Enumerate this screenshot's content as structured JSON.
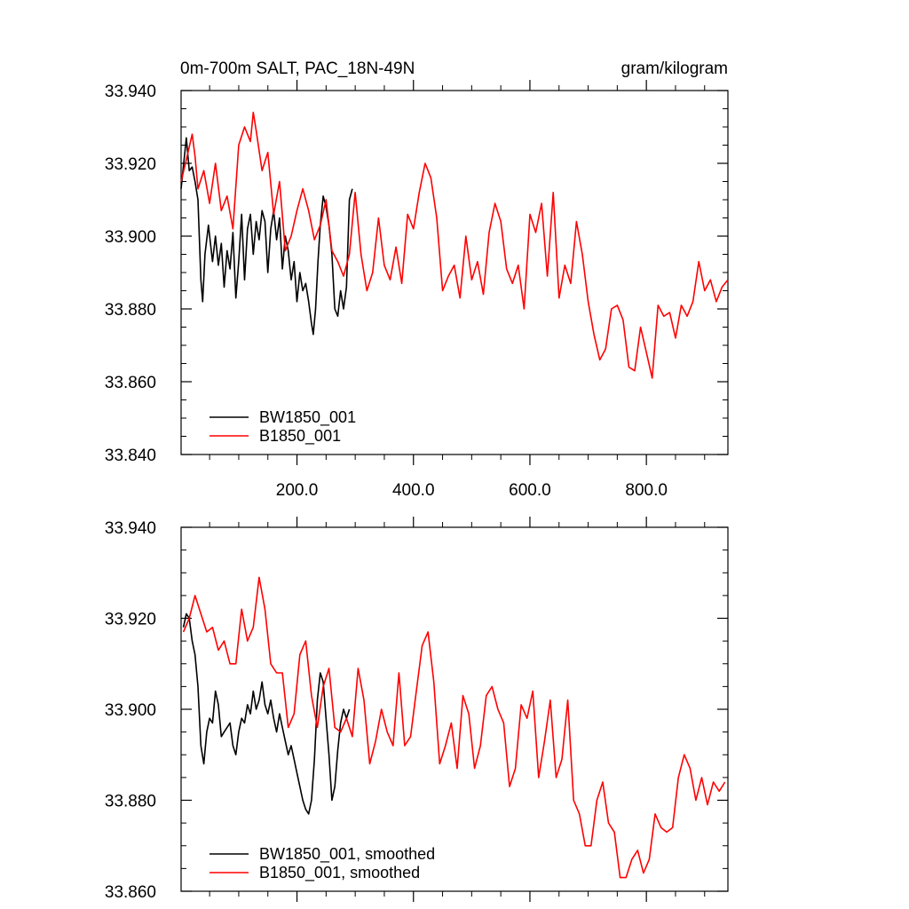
{
  "figure": {
    "title_left": "0m-700m SALT, PAC_18N-49N",
    "title_right": "gram/kilogram",
    "colors": {
      "bw": "#000000",
      "b": "#ff0000"
    }
  },
  "chart_data": [
    {
      "type": "line",
      "title": "0m-700m SALT, PAC_18N-49N",
      "units": "gram/kilogram",
      "xlim": [
        1,
        940
      ],
      "ylim": [
        33.84,
        33.94
      ],
      "xticks": [
        200,
        400,
        600,
        800
      ],
      "xtick_labels": [
        "200.0",
        "400.0",
        "600.0",
        "800.0"
      ],
      "yticks": [
        33.84,
        33.86,
        33.88,
        33.9,
        33.92,
        33.94
      ],
      "ytick_labels": [
        "33.840",
        "33.860",
        "33.880",
        "33.900",
        "33.920",
        "33.940"
      ],
      "legend": "bottom-left",
      "grid": false,
      "series": [
        {
          "name": "BW1850_001",
          "color": "#000000",
          "x": [
            1,
            10,
            15,
            20,
            25,
            30,
            35,
            38,
            42,
            48,
            55,
            60,
            65,
            70,
            75,
            80,
            85,
            90,
            95,
            100,
            105,
            110,
            115,
            120,
            125,
            130,
            135,
            140,
            145,
            150,
            155,
            160,
            165,
            170,
            175,
            180,
            185,
            190,
            195,
            200,
            205,
            210,
            215,
            220,
            225,
            228,
            232,
            236,
            240,
            245,
            250,
            255,
            260,
            265,
            270,
            275,
            280,
            285,
            290,
            295
          ],
          "y": [
            33.913,
            33.927,
            33.918,
            33.919,
            33.915,
            33.91,
            33.888,
            33.882,
            33.895,
            33.903,
            33.893,
            33.9,
            33.892,
            33.898,
            33.886,
            33.896,
            33.891,
            33.901,
            33.883,
            33.893,
            33.906,
            33.888,
            33.902,
            33.906,
            33.895,
            33.904,
            33.899,
            33.907,
            33.904,
            33.89,
            33.902,
            33.907,
            33.899,
            33.905,
            33.891,
            33.9,
            33.896,
            33.888,
            33.893,
            33.882,
            33.89,
            33.885,
            33.887,
            33.882,
            33.876,
            33.873,
            33.88,
            33.893,
            33.903,
            33.911,
            33.908,
            33.903,
            33.895,
            33.88,
            33.878,
            33.885,
            33.88,
            33.886,
            33.91,
            33.913
          ]
        },
        {
          "name": "B1850_001",
          "color": "#ff0000",
          "x": [
            1,
            10,
            20,
            25,
            30,
            40,
            50,
            60,
            70,
            80,
            90,
            100,
            110,
            120,
            125,
            130,
            140,
            150,
            160,
            170,
            180,
            190,
            200,
            210,
            220,
            230,
            240,
            250,
            260,
            270,
            280,
            290,
            300,
            310,
            320,
            330,
            340,
            350,
            360,
            370,
            380,
            390,
            400,
            410,
            420,
            425,
            430,
            440,
            450,
            460,
            470,
            480,
            490,
            500,
            510,
            520,
            530,
            540,
            550,
            560,
            570,
            580,
            590,
            600,
            610,
            620,
            630,
            640,
            650,
            660,
            670,
            680,
            690,
            700,
            710,
            720,
            730,
            740,
            750,
            760,
            770,
            780,
            790,
            800,
            810,
            820,
            830,
            840,
            850,
            860,
            870,
            880,
            890,
            900,
            910,
            920,
            930,
            940
          ],
          "y": [
            33.915,
            33.921,
            33.928,
            33.922,
            33.913,
            33.918,
            33.909,
            33.92,
            33.907,
            33.911,
            33.902,
            33.925,
            33.93,
            33.926,
            33.934,
            33.929,
            33.918,
            33.923,
            33.906,
            33.915,
            33.896,
            33.9,
            33.907,
            33.913,
            33.907,
            33.899,
            33.903,
            33.91,
            33.896,
            33.893,
            33.889,
            33.895,
            33.912,
            33.895,
            33.885,
            33.89,
            33.905,
            33.892,
            33.888,
            33.897,
            33.887,
            33.906,
            33.902,
            33.912,
            33.92,
            33.918,
            33.916,
            33.905,
            33.885,
            33.889,
            33.892,
            33.883,
            33.9,
            33.888,
            33.893,
            33.884,
            33.901,
            33.909,
            33.904,
            33.891,
            33.887,
            33.892,
            33.88,
            33.906,
            33.901,
            33.909,
            33.889,
            33.912,
            33.883,
            33.892,
            33.887,
            33.904,
            33.895,
            33.882,
            33.873,
            33.866,
            33.869,
            33.88,
            33.881,
            33.877,
            33.864,
            33.863,
            33.875,
            33.868,
            33.861,
            33.881,
            33.878,
            33.879,
            33.872,
            33.881,
            33.878,
            33.882,
            33.893,
            33.885,
            33.888,
            33.882,
            33.886,
            33.888
          ]
        }
      ],
      "legend_entries": [
        "BW1850_001",
        "B1850_001"
      ]
    },
    {
      "type": "line",
      "xlim": [
        1,
        940
      ],
      "ylim": [
        33.86,
        33.94
      ],
      "xticks": [
        200,
        400,
        600,
        800
      ],
      "yticks": [
        33.86,
        33.88,
        33.9,
        33.92,
        33.94
      ],
      "ytick_labels": [
        "33.860",
        "33.880",
        "33.900",
        "33.920",
        "33.940"
      ],
      "legend": "bottom-left",
      "grid": false,
      "series": [
        {
          "name": "BW1850_001, smoothed",
          "color": "#000000",
          "x": [
            5,
            10,
            15,
            20,
            25,
            30,
            35,
            40,
            45,
            50,
            55,
            60,
            65,
            70,
            75,
            80,
            85,
            90,
            95,
            100,
            105,
            110,
            115,
            120,
            125,
            130,
            135,
            140,
            145,
            150,
            155,
            160,
            165,
            170,
            175,
            180,
            185,
            190,
            195,
            200,
            205,
            210,
            215,
            220,
            225,
            230,
            235,
            240,
            245,
            250,
            255,
            260,
            265,
            270,
            275,
            280,
            285,
            290
          ],
          "y": [
            33.918,
            33.921,
            33.92,
            33.915,
            33.912,
            33.905,
            33.892,
            33.888,
            33.895,
            33.898,
            33.897,
            33.904,
            33.901,
            33.894,
            33.895,
            33.896,
            33.897,
            33.892,
            33.89,
            33.895,
            33.898,
            33.897,
            33.901,
            33.899,
            33.904,
            33.9,
            33.902,
            33.906,
            33.901,
            33.899,
            33.902,
            33.898,
            33.895,
            33.899,
            33.896,
            33.893,
            33.89,
            33.892,
            33.889,
            33.886,
            33.883,
            33.88,
            33.878,
            33.877,
            33.88,
            33.889,
            33.902,
            33.908,
            33.906,
            33.898,
            33.89,
            33.88,
            33.883,
            33.891,
            33.897,
            33.9,
            33.898,
            33.9
          ]
        },
        {
          "name": "B1850_001, smoothed",
          "color": "#ff0000",
          "x": [
            5,
            15,
            25,
            35,
            45,
            55,
            65,
            75,
            85,
            95,
            105,
            115,
            125,
            135,
            145,
            155,
            165,
            175,
            185,
            195,
            205,
            215,
            225,
            235,
            245,
            255,
            265,
            275,
            285,
            295,
            305,
            315,
            325,
            335,
            345,
            355,
            365,
            375,
            385,
            395,
            405,
            415,
            425,
            435,
            445,
            455,
            465,
            475,
            485,
            495,
            505,
            515,
            525,
            535,
            545,
            555,
            565,
            575,
            585,
            595,
            605,
            615,
            625,
            635,
            645,
            655,
            665,
            675,
            685,
            695,
            705,
            715,
            725,
            735,
            745,
            755,
            765,
            775,
            785,
            795,
            805,
            815,
            825,
            835,
            845,
            855,
            865,
            875,
            885,
            895,
            905,
            915,
            925,
            935
          ],
          "y": [
            33.917,
            33.92,
            33.925,
            33.921,
            33.917,
            33.918,
            33.913,
            33.915,
            33.91,
            33.91,
            33.922,
            33.915,
            33.918,
            33.929,
            33.922,
            33.91,
            33.908,
            33.908,
            33.896,
            33.899,
            33.912,
            33.915,
            33.903,
            33.896,
            33.905,
            33.909,
            33.896,
            33.895,
            33.898,
            33.894,
            33.909,
            33.902,
            33.888,
            33.893,
            33.9,
            33.895,
            33.892,
            33.908,
            33.892,
            33.894,
            33.904,
            33.914,
            33.917,
            33.906,
            33.888,
            33.892,
            33.897,
            33.887,
            33.903,
            33.899,
            33.887,
            33.892,
            33.903,
            33.905,
            33.9,
            33.897,
            33.883,
            33.887,
            33.901,
            33.898,
            33.904,
            33.885,
            33.893,
            33.902,
            33.885,
            33.889,
            33.902,
            33.88,
            33.877,
            33.87,
            33.87,
            33.88,
            33.884,
            33.875,
            33.873,
            33.863,
            33.863,
            33.867,
            33.869,
            33.864,
            33.867,
            33.877,
            33.874,
            33.873,
            33.874,
            33.885,
            33.89,
            33.887,
            33.88,
            33.885,
            33.879,
            33.884,
            33.882,
            33.884
          ]
        }
      ],
      "legend_entries": [
        "BW1850_001, smoothed",
        "B1850_001, smoothed"
      ]
    }
  ]
}
